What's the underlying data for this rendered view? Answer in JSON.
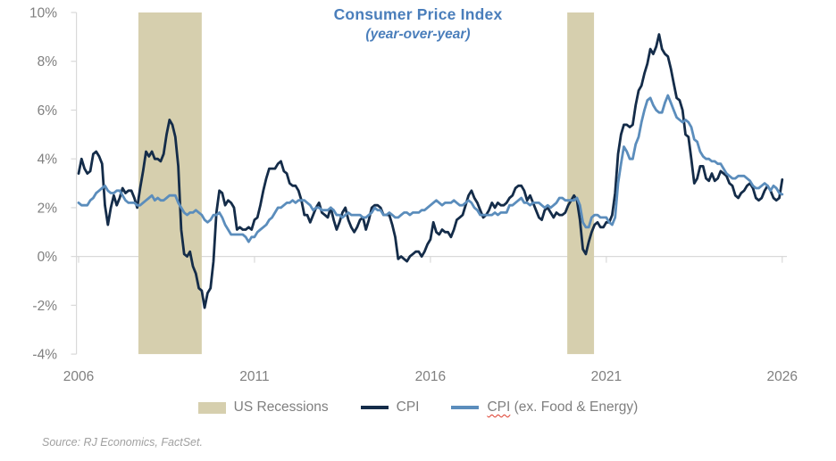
{
  "source": "Source: RJ Economics, FactSet.",
  "colors": {
    "title": "#4a7ebb",
    "axis": "#d9d9d9",
    "tick_label": "#7f7f7f",
    "legend_label": "#7f7f7f",
    "source_text": "#a0a0a0",
    "spellcheck_squiggle": "#dd3a2a",
    "background": "#ffffff"
  },
  "legend": {
    "items": [
      {
        "label": "US Recessions",
        "swatch": "rect",
        "color": "#d6cfae"
      },
      {
        "label": "CPI",
        "swatch": "line",
        "color": "#142c49"
      },
      {
        "label": "CPI (ex. Food & Energy)",
        "label_word": "CPI",
        "label_rest": " (ex. Food & Energy)",
        "swatch": "line",
        "color": "#5b8dbc",
        "spellcheck_underline": true
      }
    ]
  },
  "chart_data": {
    "type": "line",
    "title": "Consumer Price Index",
    "subtitle": "(year-over-year)",
    "title_color": "#4a7ebb",
    "x_start": 2006,
    "x_step_years": 0.0833333,
    "xlim": [
      2006,
      2026
    ],
    "ylim": [
      -4,
      10
    ],
    "grid": "zero-line-only",
    "legend_position": "bottom",
    "axis_color": "#d9d9d9",
    "tick_label_color": "#7f7f7f",
    "x_ticks": [
      {
        "value": 2006,
        "label": "2006"
      },
      {
        "value": 2011,
        "label": "2011"
      },
      {
        "value": 2016,
        "label": "2016"
      },
      {
        "value": 2021,
        "label": "2021"
      },
      {
        "value": 2026,
        "label": "2026"
      }
    ],
    "y_ticks": [
      {
        "value": 10,
        "label": "10%"
      },
      {
        "value": 8,
        "label": "8%"
      },
      {
        "value": 6,
        "label": "6%"
      },
      {
        "value": 4,
        "label": "4%"
      },
      {
        "value": 2,
        "label": "2%"
      },
      {
        "value": 0,
        "label": "0%"
      },
      {
        "value": -2,
        "label": "-2%"
      },
      {
        "value": -4,
        "label": "-4%"
      }
    ],
    "recession_color": "#d6cfae",
    "recessions": [
      {
        "from": 2007.7,
        "to": 2009.5
      },
      {
        "from": 2019.89,
        "to": 2020.65
      }
    ],
    "series": [
      {
        "name": "CPI",
        "color": "#142c49",
        "values": [
          3.4,
          4.0,
          3.6,
          3.4,
          3.5,
          4.2,
          4.3,
          4.1,
          3.8,
          2.1,
          1.3,
          2.0,
          2.5,
          2.1,
          2.4,
          2.8,
          2.6,
          2.7,
          2.7,
          2.4,
          2.0,
          2.8,
          3.5,
          4.3,
          4.1,
          4.3,
          4.0,
          4.0,
          3.9,
          4.2,
          5.0,
          5.6,
          5.4,
          4.9,
          3.7,
          1.1,
          0.1,
          0.0,
          0.2,
          -0.4,
          -0.7,
          -1.3,
          -1.4,
          -2.1,
          -1.5,
          -1.3,
          -0.2,
          1.8,
          2.7,
          2.6,
          2.1,
          2.3,
          2.2,
          2.0,
          1.1,
          1.2,
          1.1,
          1.1,
          1.2,
          1.1,
          1.5,
          1.6,
          2.1,
          2.7,
          3.2,
          3.6,
          3.6,
          3.6,
          3.8,
          3.9,
          3.5,
          3.4,
          3.0,
          2.9,
          2.9,
          2.7,
          2.3,
          1.7,
          1.7,
          1.4,
          1.7,
          2.0,
          2.2,
          1.8,
          1.7,
          1.6,
          2.0,
          1.5,
          1.1,
          1.4,
          1.8,
          2.0,
          1.5,
          1.2,
          1.0,
          1.2,
          1.5,
          1.6,
          1.1,
          1.5,
          2.0,
          2.1,
          2.1,
          2.0,
          1.7,
          1.7,
          1.7,
          1.3,
          0.8,
          -0.1,
          0.0,
          -0.1,
          -0.2,
          0.0,
          0.1,
          0.2,
          0.2,
          0.0,
          0.2,
          0.5,
          0.7,
          1.4,
          1.0,
          0.9,
          1.1,
          1.0,
          1.0,
          0.8,
          1.1,
          1.5,
          1.6,
          1.7,
          2.1,
          2.5,
          2.7,
          2.4,
          2.2,
          1.9,
          1.6,
          1.7,
          1.9,
          2.2,
          2.0,
          2.2,
          2.1,
          2.1,
          2.2,
          2.4,
          2.5,
          2.8,
          2.9,
          2.9,
          2.7,
          2.3,
          2.5,
          2.2,
          1.9,
          1.6,
          1.5,
          1.9,
          2.0,
          1.8,
          1.6,
          1.8,
          1.7,
          1.7,
          1.8,
          2.1,
          2.3,
          2.5,
          2.3,
          1.5,
          0.3,
          0.1,
          0.6,
          1.0,
          1.3,
          1.4,
          1.2,
          1.2,
          1.4,
          1.4,
          1.7,
          2.6,
          4.2,
          5.0,
          5.4,
          5.4,
          5.3,
          5.4,
          6.2,
          6.8,
          7.0,
          7.5,
          7.9,
          8.5,
          8.3,
          8.6,
          9.1,
          8.5,
          8.3,
          8.2,
          7.7,
          7.1,
          6.5,
          6.4,
          6.0,
          5.0,
          4.9,
          4.0,
          3.0,
          3.2,
          3.7,
          3.7,
          3.2,
          3.1,
          3.4,
          3.1,
          3.2,
          3.5,
          3.4,
          3.3,
          3.0,
          2.9,
          2.5,
          2.4,
          2.6,
          2.7,
          2.9,
          3.0,
          2.8,
          2.4,
          2.3,
          2.4,
          2.7,
          2.9,
          2.7,
          2.4,
          2.3,
          2.4,
          3.15
        ]
      },
      {
        "name": "CPI (ex. Food & Energy)",
        "color": "#5b8dbc",
        "values": [
          2.2,
          2.1,
          2.1,
          2.1,
          2.3,
          2.4,
          2.6,
          2.7,
          2.8,
          2.9,
          2.7,
          2.6,
          2.6,
          2.7,
          2.7,
          2.5,
          2.3,
          2.2,
          2.2,
          2.2,
          2.1,
          2.1,
          2.2,
          2.3,
          2.4,
          2.5,
          2.3,
          2.4,
          2.3,
          2.3,
          2.4,
          2.5,
          2.5,
          2.5,
          2.2,
          2.0,
          1.8,
          1.7,
          1.8,
          1.8,
          1.9,
          1.8,
          1.7,
          1.5,
          1.4,
          1.5,
          1.7,
          1.7,
          1.8,
          1.6,
          1.3,
          1.1,
          0.9,
          0.9,
          0.9,
          0.9,
          0.9,
          0.8,
          0.6,
          0.8,
          0.8,
          1.0,
          1.1,
          1.2,
          1.3,
          1.5,
          1.6,
          1.8,
          2.0,
          2.0,
          2.1,
          2.2,
          2.2,
          2.3,
          2.2,
          2.3,
          2.3,
          2.3,
          2.2,
          2.1,
          1.9,
          2.0,
          2.0,
          1.9,
          1.9,
          1.9,
          2.0,
          1.9,
          1.7,
          1.7,
          1.6,
          1.7,
          1.8,
          1.7,
          1.7,
          1.7,
          1.7,
          1.6,
          1.6,
          1.7,
          1.8,
          2.0,
          1.9,
          1.9,
          1.7,
          1.7,
          1.8,
          1.7,
          1.6,
          1.6,
          1.7,
          1.8,
          1.8,
          1.7,
          1.8,
          1.8,
          1.8,
          1.9,
          1.9,
          2.0,
          2.1,
          2.2,
          2.3,
          2.2,
          2.1,
          2.2,
          2.2,
          2.2,
          2.3,
          2.2,
          2.1,
          2.1,
          2.2,
          2.3,
          2.2,
          2.0,
          1.9,
          1.7,
          1.7,
          1.7,
          1.7,
          1.7,
          1.8,
          1.7,
          1.8,
          1.8,
          1.8,
          2.1,
          2.1,
          2.2,
          2.3,
          2.4,
          2.2,
          2.2,
          2.1,
          2.2,
          2.2,
          2.2,
          2.1,
          2.0,
          2.1,
          2.0,
          2.1,
          2.2,
          2.4,
          2.4,
          2.3,
          2.3,
          2.3,
          2.3,
          2.4,
          2.1,
          1.4,
          1.2,
          1.2,
          1.6,
          1.7,
          1.7,
          1.6,
          1.6,
          1.6,
          1.4,
          1.3,
          1.6,
          3.0,
          3.8,
          4.5,
          4.3,
          4.0,
          4.0,
          4.6,
          4.9,
          5.5,
          6.0,
          6.4,
          6.5,
          6.2,
          6.0,
          5.9,
          5.9,
          6.3,
          6.6,
          6.3,
          6.0,
          5.7,
          5.6,
          5.5,
          5.6,
          5.5,
          5.3,
          4.8,
          4.7,
          4.3,
          4.1,
          4.0,
          4.0,
          3.9,
          3.9,
          3.8,
          3.8,
          3.6,
          3.4,
          3.3,
          3.2,
          3.2,
          3.3,
          3.3,
          3.3,
          3.2,
          3.1,
          2.9,
          2.8,
          2.8,
          2.9,
          3.0,
          2.9,
          2.7,
          2.9,
          2.8,
          2.6,
          2.55
        ]
      }
    ]
  }
}
